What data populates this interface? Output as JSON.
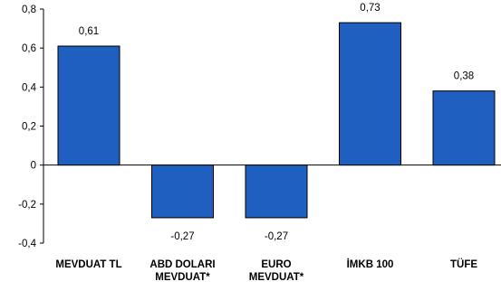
{
  "chart_data": {
    "type": "bar",
    "categories": [
      [
        "MEVDUAT TL"
      ],
      [
        "ABD DOLARI",
        "MEVDUAT*"
      ],
      [
        "EURO",
        "MEVDUAT*"
      ],
      [
        "İMKB 100"
      ],
      [
        "TÜFE"
      ]
    ],
    "values": [
      0.61,
      -0.27,
      -0.27,
      0.73,
      0.38
    ],
    "value_labels": [
      "0,61",
      "-0,27",
      "-0,27",
      "0,73",
      "0,38"
    ],
    "yticks": [
      0.8,
      0.6,
      0.4,
      0.2,
      0,
      -0.2,
      -0.4
    ],
    "ytick_labels": [
      "0,8",
      "0,6",
      "0,4",
      "0,2",
      "0",
      "-0,2",
      "-0,4"
    ],
    "ylim": [
      -0.4,
      0.8
    ],
    "grid": false,
    "bar_color": "#1f5fbf",
    "bar_edge_color": "#000000"
  }
}
